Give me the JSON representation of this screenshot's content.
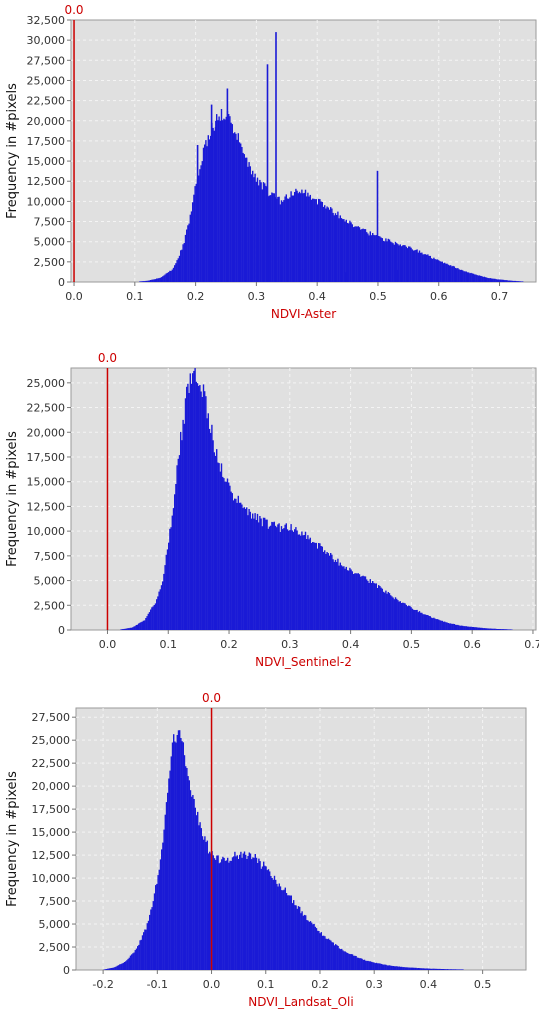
{
  "chart_data": [
    {
      "type": "bar",
      "subtype": "histogram",
      "xlabel": "NDVI-Aster",
      "ylabel": "Frequency in #pixels",
      "marker": {
        "x": 0.0,
        "label": "0.0"
      },
      "xlim": [
        -0.005,
        0.76
      ],
      "ylim": [
        0,
        32500
      ],
      "xticks": [
        0.0,
        0.1,
        0.2,
        0.3,
        0.4,
        0.5,
        0.6,
        0.7
      ],
      "xtick_labels": [
        "0.0",
        "0.1",
        "0.2",
        "0.3",
        "0.4",
        "0.5",
        "0.6",
        "0.7"
      ],
      "yticks": [
        0,
        2500,
        5000,
        7500,
        10000,
        12500,
        15000,
        17500,
        20000,
        22500,
        25000,
        27500,
        30000,
        32500
      ],
      "ytick_labels": [
        "0",
        "2,500",
        "5,000",
        "7,500",
        "10,000",
        "12,500",
        "15,000",
        "17,500",
        "20,000",
        "22,500",
        "25,000",
        "27,500",
        "30,000",
        "32,500"
      ],
      "colors": {
        "bars": "#1a1ad6",
        "marker": "#cc0000",
        "plot_bg": "#e0e0e0",
        "grid": "#f4f4f4"
      },
      "grid": true,
      "x": [
        0.0,
        0.1,
        0.12,
        0.14,
        0.16,
        0.17,
        0.18,
        0.19,
        0.2,
        0.21,
        0.22,
        0.23,
        0.24,
        0.25,
        0.26,
        0.27,
        0.28,
        0.29,
        0.3,
        0.31,
        0.32,
        0.33,
        0.34,
        0.35,
        0.36,
        0.37,
        0.38,
        0.39,
        0.4,
        0.42,
        0.44,
        0.46,
        0.48,
        0.5,
        0.52,
        0.54,
        0.56,
        0.58,
        0.6,
        0.62,
        0.64,
        0.66,
        0.68,
        0.7,
        0.72,
        0.74,
        0.76
      ],
      "y": [
        0,
        30,
        150,
        500,
        1500,
        2800,
        5000,
        8000,
        12500,
        15500,
        18000,
        19500,
        20500,
        20500,
        19500,
        17500,
        15500,
        14000,
        12500,
        12000,
        11000,
        10500,
        10000,
        10500,
        11000,
        11500,
        11000,
        10500,
        10000,
        9000,
        8000,
        7000,
        6200,
        5500,
        5000,
        4500,
        4000,
        3300,
        2600,
        2000,
        1400,
        900,
        500,
        300,
        150,
        60,
        10
      ],
      "spikes": [
        {
          "x": 0.193,
          "y": 1000
        },
        {
          "x": 0.202,
          "y": 17000
        },
        {
          "x": 0.225,
          "y": 22000
        },
        {
          "x": 0.232,
          "y": 20000
        },
        {
          "x": 0.251,
          "y": 24000
        },
        {
          "x": 0.28,
          "y": 3500
        },
        {
          "x": 0.331,
          "y": 31000
        },
        {
          "x": 0.317,
          "y": 27000
        },
        {
          "x": 0.375,
          "y": 1500
        },
        {
          "x": 0.445,
          "y": 1200
        },
        {
          "x": 0.498,
          "y": 13800
        },
        {
          "x": 0.509,
          "y": 2600
        },
        {
          "x": 0.53,
          "y": 1500
        }
      ]
    },
    {
      "type": "bar",
      "subtype": "histogram",
      "xlabel": "NDVI_Sentinel-2",
      "ylabel": "Frequency in #pixels",
      "marker": {
        "x": 0.0,
        "label": "0.0"
      },
      "xlim": [
        -0.06,
        0.705
      ],
      "ylim": [
        0,
        26500
      ],
      "xticks": [
        0.0,
        0.1,
        0.2,
        0.3,
        0.4,
        0.5,
        0.6,
        0.7
      ],
      "xtick_labels": [
        "0.0",
        "0.1",
        "0.2",
        "0.3",
        "0.4",
        "0.5",
        "0.6",
        "0.7"
      ],
      "yticks": [
        0,
        2500,
        5000,
        7500,
        10000,
        12500,
        15000,
        17500,
        20000,
        22500,
        25000
      ],
      "ytick_labels": [
        "0",
        "2,500",
        "5,000",
        "7,500",
        "10,000",
        "12,500",
        "15,000",
        "17,500",
        "20,000",
        "22,500",
        "25,000"
      ],
      "colors": {
        "bars": "#1a1ad6",
        "marker": "#cc0000",
        "plot_bg": "#e0e0e0",
        "grid": "#f4f4f4"
      },
      "grid": true,
      "x": [
        0.0,
        0.02,
        0.04,
        0.06,
        0.08,
        0.09,
        0.1,
        0.11,
        0.12,
        0.13,
        0.14,
        0.15,
        0.16,
        0.17,
        0.18,
        0.2,
        0.22,
        0.24,
        0.26,
        0.28,
        0.3,
        0.32,
        0.34,
        0.36,
        0.38,
        0.4,
        0.42,
        0.44,
        0.46,
        0.48,
        0.5,
        0.52,
        0.54,
        0.56,
        0.58,
        0.6,
        0.62,
        0.64,
        0.66,
        0.68,
        0.7
      ],
      "y": [
        0,
        50,
        250,
        1000,
        3000,
        5200,
        9000,
        14000,
        19500,
        24000,
        26000,
        25500,
        23000,
        20000,
        17000,
        14200,
        12500,
        11500,
        10800,
        10400,
        10300,
        9800,
        8800,
        7800,
        6800,
        6000,
        5300,
        4600,
        3700,
        2900,
        2200,
        1600,
        1100,
        700,
        450,
        300,
        180,
        110,
        60,
        30,
        10
      ]
    },
    {
      "type": "bar",
      "subtype": "histogram",
      "xlabel": "NDVI_Landsat_Oli",
      "ylabel": "Frequency in #pixels",
      "marker": {
        "x": 0.0,
        "label": "0.0"
      },
      "xlim": [
        -0.25,
        0.58
      ],
      "ylim": [
        0,
        28500
      ],
      "xticks": [
        -0.2,
        -0.1,
        0.0,
        0.1,
        0.2,
        0.3,
        0.4,
        0.5
      ],
      "xtick_labels": [
        "-0.2",
        "-0.1",
        "0.0",
        "0.1",
        "0.2",
        "0.3",
        "0.4",
        "0.5"
      ],
      "yticks": [
        0,
        2500,
        5000,
        7500,
        10000,
        12500,
        15000,
        17500,
        20000,
        22500,
        25000,
        27500
      ],
      "ytick_labels": [
        "0",
        "2,500",
        "5,000",
        "7,500",
        "10,000",
        "12,500",
        "15,000",
        "17,500",
        "20,000",
        "22,500",
        "25,000",
        "27,500"
      ],
      "colors": {
        "bars": "#1a1ad6",
        "marker": "#cc0000",
        "plot_bg": "#e0e0e0",
        "grid": "#f4f4f4"
      },
      "grid": true,
      "x": [
        -0.22,
        -0.2,
        -0.18,
        -0.16,
        -0.14,
        -0.12,
        -0.1,
        -0.09,
        -0.08,
        -0.07,
        -0.06,
        -0.05,
        -0.04,
        -0.03,
        -0.02,
        -0.01,
        0.0,
        0.01,
        0.02,
        0.04,
        0.06,
        0.08,
        0.1,
        0.12,
        0.14,
        0.16,
        0.18,
        0.2,
        0.22,
        0.24,
        0.26,
        0.28,
        0.3,
        0.32,
        0.34,
        0.36,
        0.4,
        0.44,
        0.48,
        0.52,
        0.56
      ],
      "y": [
        0,
        50,
        300,
        900,
        2200,
        4800,
        10000,
        14500,
        20000,
        25500,
        26500,
        23500,
        20000,
        17500,
        15000,
        13500,
        12500,
        12200,
        12000,
        12500,
        12800,
        12000,
        11000,
        9600,
        8200,
        6700,
        5300,
        4100,
        3000,
        2200,
        1600,
        1100,
        800,
        550,
        400,
        280,
        150,
        80,
        40,
        15,
        0
      ]
    }
  ]
}
